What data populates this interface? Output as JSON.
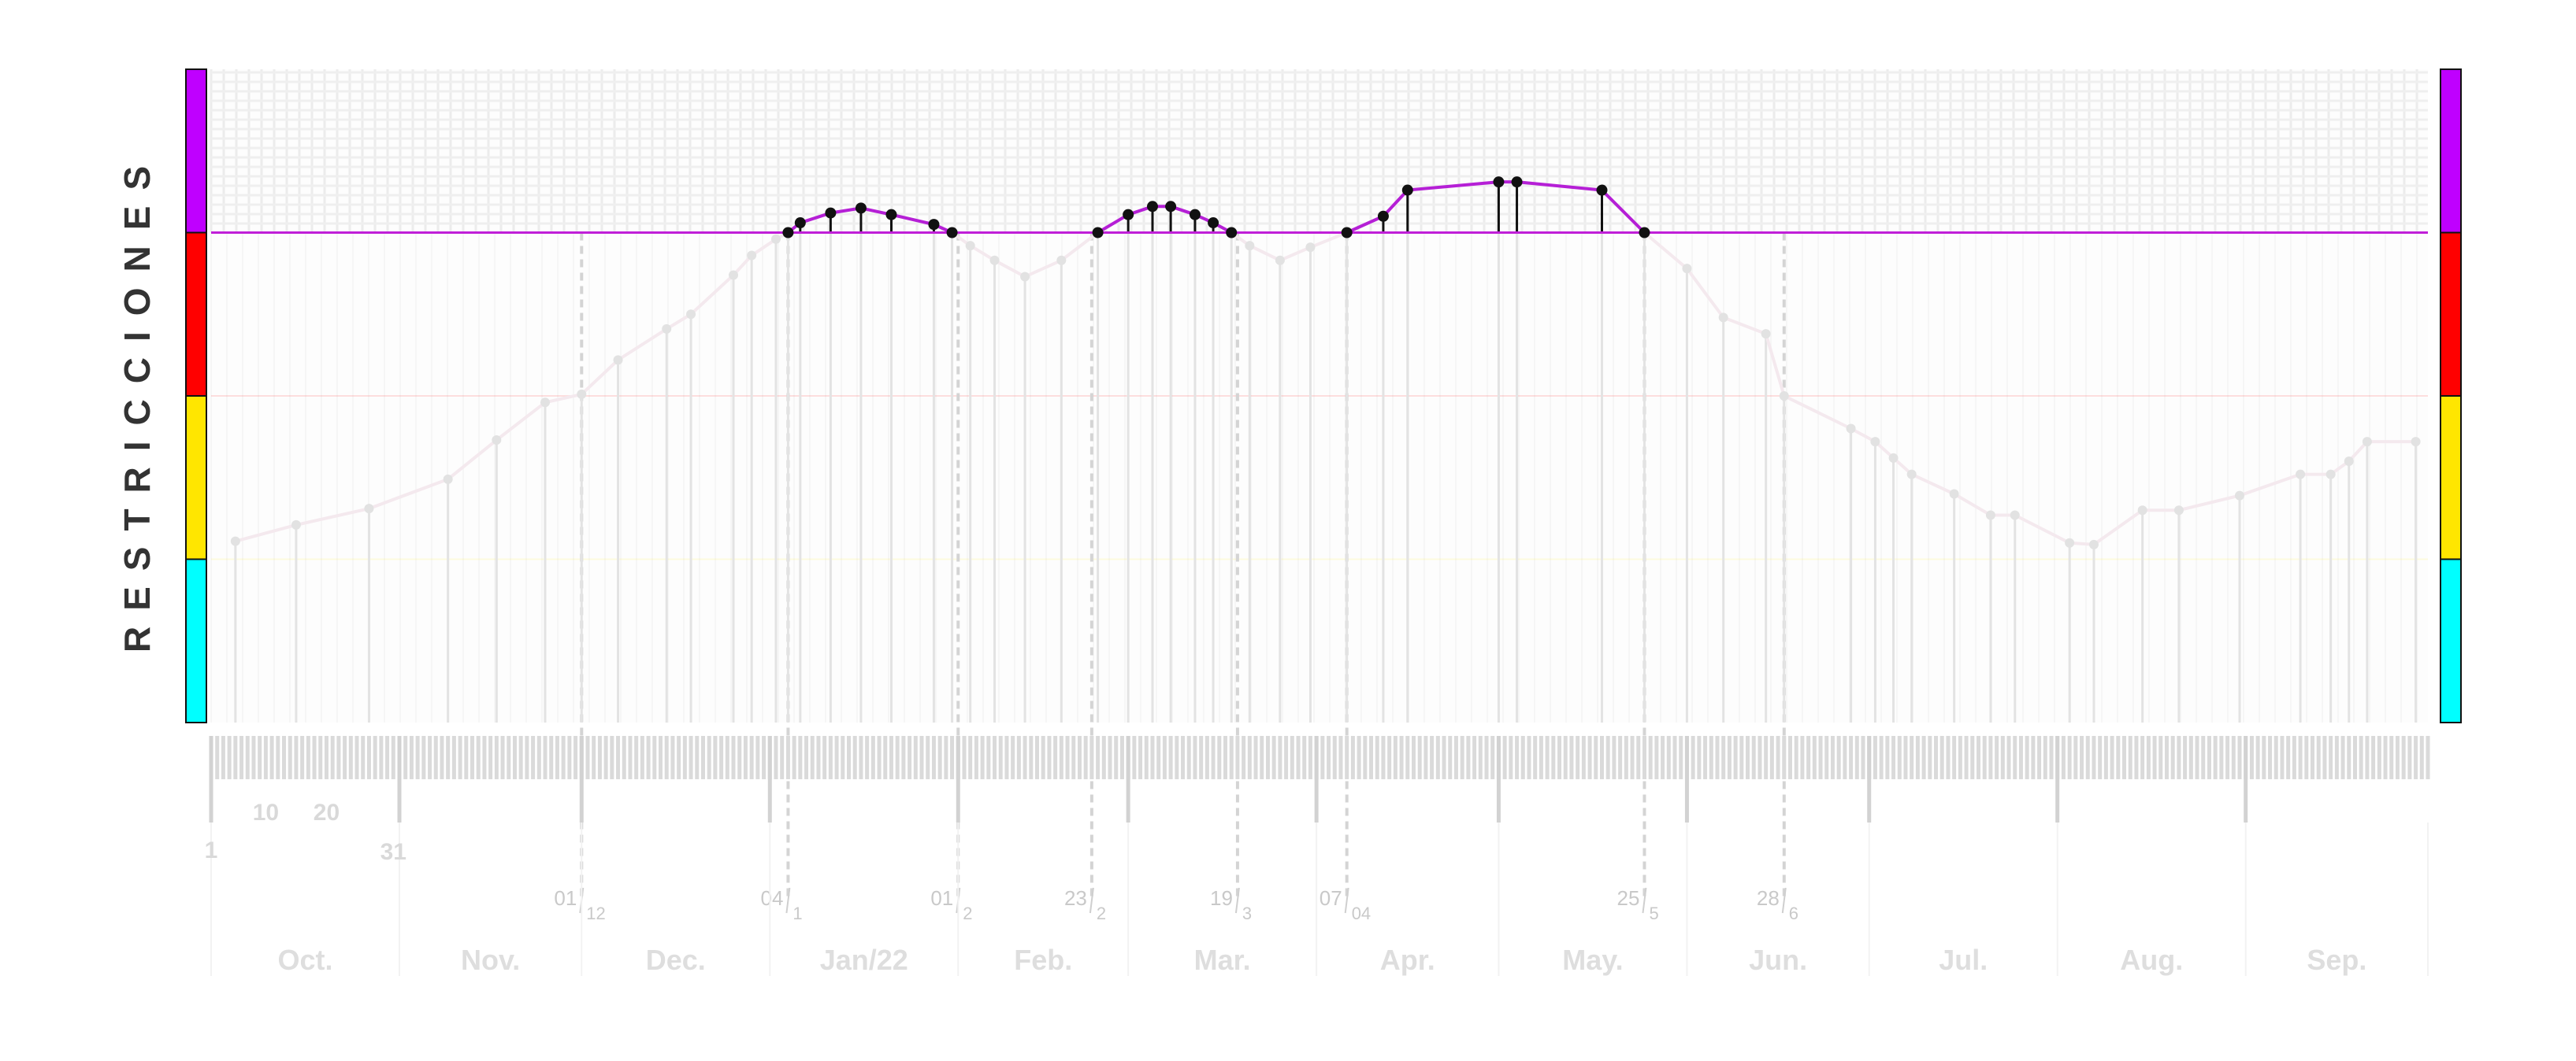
{
  "chart_data": {
    "type": "line",
    "title": "",
    "ylabel": "RESTRICCIONES",
    "bands": [
      {
        "name": "magenta",
        "color": "#bf00ff",
        "from": 4,
        "to": 5
      },
      {
        "name": "red",
        "color": "#ff0000",
        "from": 3,
        "to": 4
      },
      {
        "name": "yellow",
        "color": "#ffe600",
        "from": 2,
        "to": 3
      },
      {
        "name": "cyan",
        "color": "#00ffff",
        "from": 1,
        "to": 2
      }
    ],
    "ylim": [
      1,
      5
    ],
    "threshold": 4,
    "months": [
      "Oct.",
      "Nov.",
      "Dec.",
      "Jan/22",
      "Feb.",
      "Mar.",
      "Apr.",
      "May.",
      "Jun.",
      "Jul.",
      "Aug.",
      "Sep."
    ],
    "day_labels": [
      {
        "day": 0,
        "text": "1"
      },
      {
        "day": 9,
        "text": "10"
      },
      {
        "day": 19,
        "text": "20"
      },
      {
        "day": 30,
        "text": "31"
      }
    ],
    "date_markers": [
      {
        "day": 61,
        "day_text": "01",
        "month_text": "12"
      },
      {
        "day": 95,
        "day_text": "04",
        "month_text": "1"
      },
      {
        "day": 123,
        "day_text": "01",
        "month_text": "2"
      },
      {
        "day": 145,
        "day_text": "23",
        "month_text": "2"
      },
      {
        "day": 169,
        "day_text": "19",
        "month_text": "3"
      },
      {
        "day": 187,
        "day_text": "07",
        "month_text": "04"
      },
      {
        "day": 236,
        "day_text": "25",
        "month_text": "5"
      },
      {
        "day": 259,
        "day_text": "28",
        "month_text": "6"
      }
    ],
    "series": [
      {
        "x": [
          4,
          14,
          26,
          39,
          47,
          55,
          61,
          67,
          75,
          79,
          86,
          89,
          93,
          95,
          97,
          102,
          107,
          112,
          119,
          122,
          125,
          129,
          134,
          140,
          146,
          151,
          155,
          158,
          162,
          165,
          168,
          171,
          176,
          181,
          187,
          193,
          197,
          212,
          215,
          229,
          236,
          243,
          249,
          256,
          259,
          270,
          274,
          277,
          280,
          287,
          293,
          297,
          306,
          310,
          318,
          324,
          334,
          344,
          349,
          352,
          355,
          363
        ],
        "y": [
          2.11,
          2.21,
          2.31,
          2.49,
          2.73,
          2.96,
          3.01,
          3.22,
          3.41,
          3.5,
          3.74,
          3.86,
          3.96,
          4.0,
          4.06,
          4.12,
          4.15,
          4.11,
          4.05,
          4.0,
          3.92,
          3.83,
          3.73,
          3.83,
          4.0,
          4.11,
          4.16,
          4.16,
          4.11,
          4.06,
          4.0,
          3.92,
          3.83,
          3.91,
          4.0,
          4.1,
          4.26,
          4.31,
          4.31,
          4.26,
          4.0,
          3.78,
          3.48,
          3.38,
          3.0,
          2.8,
          2.72,
          2.62,
          2.52,
          2.4,
          2.27,
          2.27,
          2.1,
          2.09,
          2.3,
          2.3,
          2.39,
          2.52,
          2.52,
          2.6,
          2.72,
          2.72
        ]
      }
    ]
  }
}
